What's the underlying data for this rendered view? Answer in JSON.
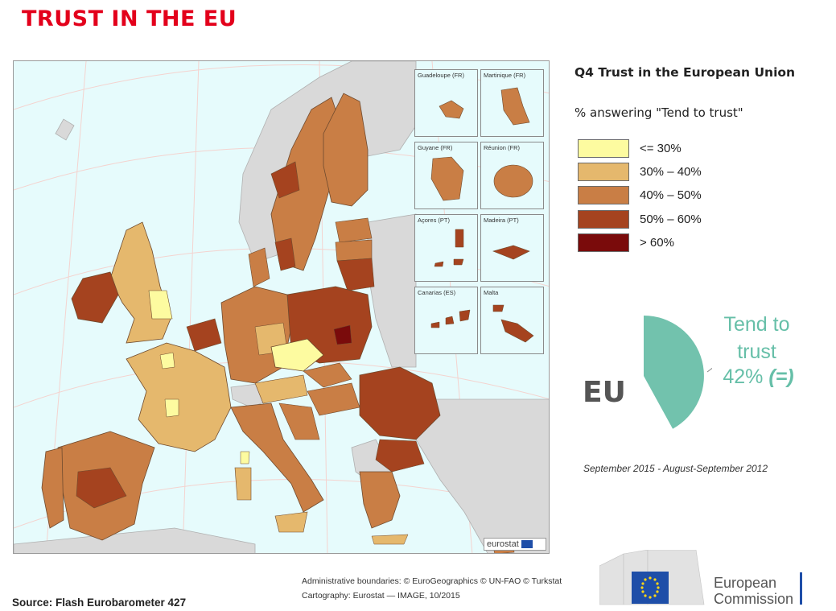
{
  "header": {
    "title": "TRUST IN THE EU"
  },
  "map": {
    "insets": [
      {
        "label": "Guadeloupe (FR)",
        "scale": "0  25"
      },
      {
        "label": "Martinique (FR)",
        "scale": "0  20"
      },
      {
        "label": "Guyane (FR)",
        "scale": "0  100"
      },
      {
        "label": "Réunion (FR)",
        "scale": "0  20"
      },
      {
        "label": "Açores (PT)",
        "scale": "0  50"
      },
      {
        "label": "Madeira (PT)",
        "scale": "0  20"
      },
      {
        "label": "Canarias (ES)",
        "scale": "0  100"
      },
      {
        "label": "Malta",
        "scale": "0  10"
      }
    ],
    "eurostat_logo": "eurostat",
    "legend_colors": {
      "le30": "#fdfba0",
      "c30_40": "#e5b86d",
      "c40_50": "#c97e45",
      "c50_60": "#a5431f",
      "gt60": "#7a0b0b"
    }
  },
  "question": {
    "title": "Q4 Trust in the European Union",
    "subtitle": "% answering \"Tend to trust\""
  },
  "legend": {
    "items": [
      {
        "label": "<= 30%",
        "color": "#fdfba0"
      },
      {
        "label": "30% – 40%",
        "color": "#e5b86d"
      },
      {
        "label": "40% – 50%",
        "color": "#c97e45"
      },
      {
        "label": "50% – 60%",
        "color": "#a5431f"
      },
      {
        "label": "> 60%",
        "color": "#7a0b0b"
      }
    ]
  },
  "eu_result": {
    "region": "EU",
    "label_line1": "Tend to",
    "label_line2": "trust",
    "value": "42%",
    "value_num": 42,
    "change": "(=)",
    "color": "#72c2ad",
    "period": "September 2015 - August-September 2012"
  },
  "credits": {
    "line1": "Administrative boundaries: © EuroGeographics © UN-FAO © Turkstat",
    "line2": "Cartography: Eurostat — IMAGE, 10/2015"
  },
  "source": "Source: Flash Eurobarometer 427",
  "ec_logo": {
    "line1": "European",
    "line2": "Commission"
  }
}
